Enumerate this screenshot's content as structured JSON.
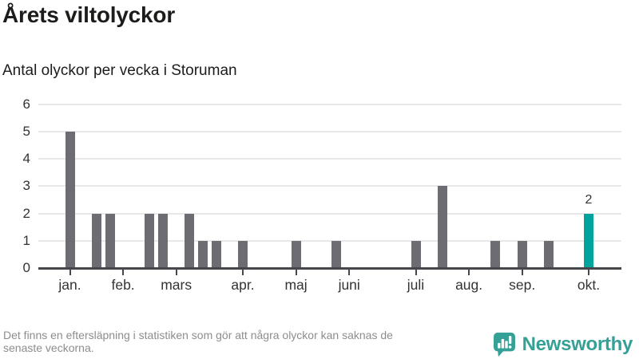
{
  "chart_data": {
    "type": "bar",
    "title": "Årets viltolyckor",
    "subtitle": "Antal olyckor per vecka i Storuman",
    "x_unit": "vecka (ISO week 1–40)",
    "num_weeks": 40,
    "values": [
      5,
      0,
      2,
      2,
      0,
      0,
      2,
      2,
      0,
      2,
      1,
      1,
      0,
      1,
      0,
      0,
      0,
      1,
      0,
      0,
      1,
      0,
      0,
      0,
      0,
      0,
      1,
      0,
      3,
      0,
      0,
      0,
      1,
      0,
      1,
      0,
      1,
      0,
      0,
      2
    ],
    "month_ticks": [
      {
        "label": "jan.",
        "week": 1
      },
      {
        "label": "feb.",
        "week": 5
      },
      {
        "label": "mars",
        "week": 9
      },
      {
        "label": "apr.",
        "week": 14
      },
      {
        "label": "maj",
        "week": 18
      },
      {
        "label": "juni",
        "week": 22
      },
      {
        "label": "juli",
        "week": 27
      },
      {
        "label": "aug.",
        "week": 31
      },
      {
        "label": "sep.",
        "week": 35
      },
      {
        "label": "okt.",
        "week": 40
      }
    ],
    "yticks": [
      0,
      1,
      2,
      3,
      4,
      5,
      6
    ],
    "ylim": [
      0,
      6
    ],
    "grid": true,
    "legend": "none",
    "highlight": {
      "week": 40,
      "value": 2,
      "label": "2"
    },
    "colors": {
      "bar": "#6c6c72",
      "highlight": "#00a49c",
      "grid": "#e8e8e8",
      "axis": "#47474b",
      "tick_label": "#333333"
    }
  },
  "footer": {
    "note_line1": "Det finns en eftersläpning i statistiken som gör att några olyckor kan saknas de",
    "note_line2": "senaste veckorna.",
    "brand": "Newsworthy",
    "brand_color": "#35a095"
  }
}
